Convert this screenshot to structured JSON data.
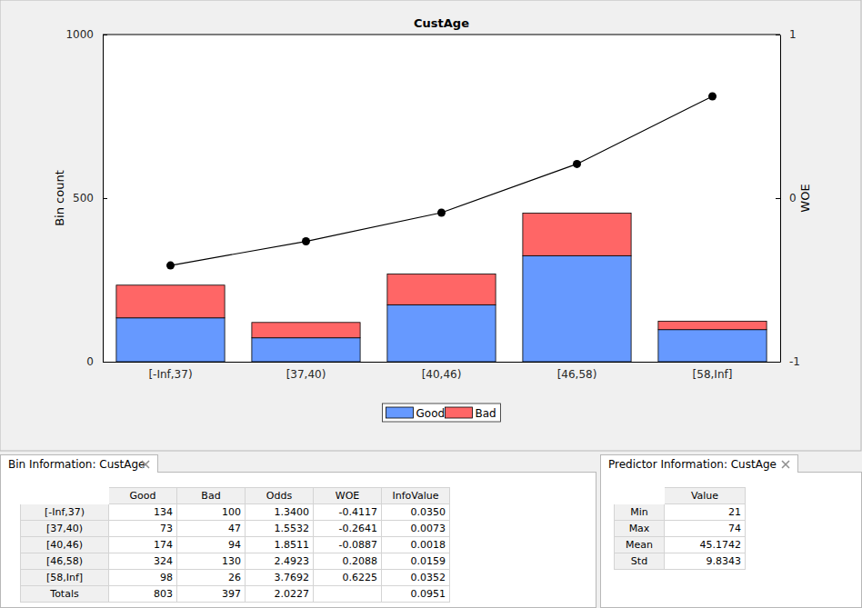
{
  "chart_data": {
    "type": "bar",
    "title": "CustAge",
    "categories": [
      "[-Inf,37)",
      "[37,40)",
      "[40,46)",
      "[46,58)",
      "[58,Inf]"
    ],
    "series": [
      {
        "name": "Good",
        "color": "#6699ff",
        "values": [
          134,
          73,
          174,
          324,
          98
        ]
      },
      {
        "name": "Bad",
        "color": "#ff6666",
        "values": [
          100,
          47,
          94,
          130,
          26
        ]
      },
      {
        "type": "line",
        "axis": "y2",
        "color": "#000000",
        "marker": "circle",
        "values": [
          -0.4117,
          -0.2641,
          -0.0887,
          0.2088,
          0.6225
        ]
      }
    ],
    "stacked": true,
    "y_label": "Bin count",
    "y2_label": "WOE",
    "ylim": [
      0,
      1000
    ],
    "yticks": [
      0,
      500,
      1000
    ],
    "y2lim": [
      -1,
      1
    ],
    "y2ticks": [
      -1,
      0,
      1
    ],
    "legend": "bottom"
  },
  "bin_table": {
    "title": "Bin Information: CustAge",
    "columns": [
      "Good",
      "Bad",
      "Odds",
      "WOE",
      "InfoValue"
    ],
    "rows": [
      {
        "label": "[-Inf,37)",
        "cells": [
          "134",
          "100",
          "1.3400",
          "-0.4117",
          "0.0350"
        ]
      },
      {
        "label": "[37,40)",
        "cells": [
          "73",
          "47",
          "1.5532",
          "-0.2641",
          "0.0073"
        ]
      },
      {
        "label": "[40,46)",
        "cells": [
          "174",
          "94",
          "1.8511",
          "-0.0887",
          "0.0018"
        ]
      },
      {
        "label": "[46,58)",
        "cells": [
          "324",
          "130",
          "2.4923",
          "0.2088",
          "0.0159"
        ]
      },
      {
        "label": "[58,Inf]",
        "cells": [
          "98",
          "26",
          "3.7692",
          "0.6225",
          "0.0352"
        ]
      },
      {
        "label": "Totals",
        "cells": [
          "803",
          "397",
          "2.0227",
          null,
          "0.0951"
        ]
      }
    ]
  },
  "predictor_table": {
    "title": "Predictor Information: CustAge",
    "columns": [
      "Value"
    ],
    "rows": [
      {
        "label": "Min",
        "cells": [
          "21"
        ]
      },
      {
        "label": "Max",
        "cells": [
          "74"
        ]
      },
      {
        "label": "Mean",
        "cells": [
          "45.1742"
        ]
      },
      {
        "label": "Std",
        "cells": [
          "9.8343"
        ]
      }
    ]
  }
}
